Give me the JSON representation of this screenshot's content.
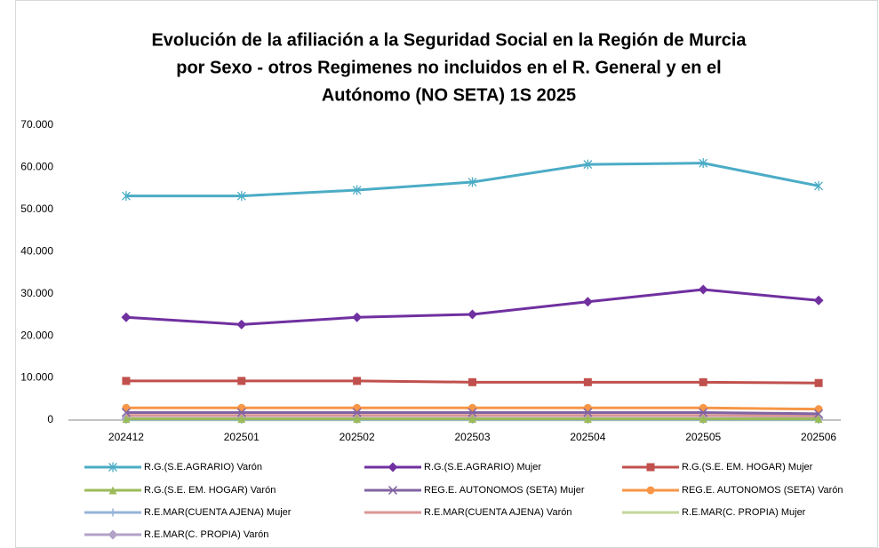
{
  "chart_data": {
    "type": "line",
    "title": [
      "Evolución de la afiliación a la Seguridad Social en la Región de Murcia",
      "por Sexo - otros Regimenes no incluidos en el R. General y en el",
      "Autónomo (NO SETA) 1S 2025"
    ],
    "categories": [
      "202412",
      "202501",
      "202502",
      "202503",
      "202504",
      "202505",
      "202506"
    ],
    "ylim": [
      0,
      70000
    ],
    "yticks": [
      0,
      {
        "value": 10000,
        "label": "10.000"
      },
      {
        "value": 20000,
        "label": "20.000"
      },
      {
        "value": 30000,
        "label": "30.000"
      },
      {
        "value": 40000,
        "label": "40.000"
      },
      {
        "value": 50000,
        "label": "50.000"
      },
      {
        "value": 60000,
        "label": "60.000"
      },
      {
        "value": 70000,
        "label": "70.000"
      }
    ],
    "grid": false,
    "legend": "bottom",
    "series": [
      {
        "name": "R.G.(S.E.AGRARIO) Varón",
        "color": "#4bacc6",
        "marker": "star",
        "values": [
          53200,
          53200,
          54600,
          56500,
          60700,
          61000,
          55600
        ]
      },
      {
        "name": "R.G.(S.E.AGRARIO) Mujer",
        "color": "#7030a0",
        "marker": "diamond",
        "values": [
          24400,
          22700,
          24400,
          25100,
          28100,
          31000,
          28400
        ]
      },
      {
        "name": "R.G.(S.E. EM. HOGAR) Mujer",
        "color": "#c0504d",
        "marker": "square",
        "values": [
          9300,
          9300,
          9300,
          9000,
          9000,
          9000,
          8800
        ]
      },
      {
        "name": "R.G.(S.E. EM. HOGAR) Varón",
        "color": "#9bbb59",
        "marker": "triangle",
        "values": [
          300,
          300,
          300,
          300,
          300,
          300,
          300
        ]
      },
      {
        "name": "REG.E. AUTONOMOS (SETA) Mujer",
        "color": "#8064a2",
        "marker": "x",
        "values": [
          1800,
          1800,
          1800,
          1800,
          1800,
          1800,
          1500
        ]
      },
      {
        "name": "REG.E. AUTONOMOS (SETA) Varón",
        "color": "#f79646",
        "marker": "circle",
        "values": [
          2900,
          2900,
          2900,
          2900,
          2900,
          2900,
          2600
        ]
      },
      {
        "name": "R.E.MAR(CUENTA AJENA) Mujer",
        "color": "#95b3d7",
        "marker": "plus",
        "values": [
          100,
          100,
          100,
          100,
          100,
          100,
          100
        ]
      },
      {
        "name": "R.E.MAR(CUENTA AJENA) Varón",
        "color": "#d99694",
        "marker": "none",
        "values": [
          1100,
          1100,
          1100,
          1100,
          1100,
          1100,
          1000
        ]
      },
      {
        "name": "R.E.MAR(C. PROPIA) Mujer",
        "color": "#c3d69b",
        "marker": "none",
        "values": [
          50,
          50,
          50,
          50,
          50,
          50,
          50
        ]
      },
      {
        "name": "R.E.MAR(C. PROPIA) Varón",
        "color": "#b3a2c7",
        "marker": "diamond",
        "values": [
          400,
          400,
          400,
          400,
          400,
          400,
          400
        ]
      }
    ]
  }
}
